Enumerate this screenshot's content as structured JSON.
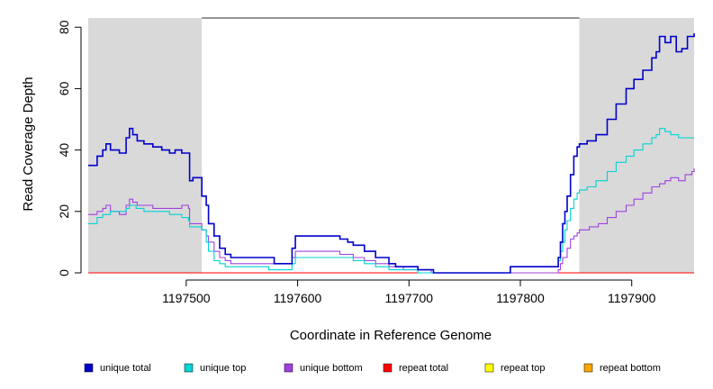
{
  "chart_data": {
    "type": "line",
    "title": "",
    "xlabel": "Coordinate in Reference Genome",
    "ylabel": "Read Coverage Depth",
    "xlim": [
      1197412,
      1197956
    ],
    "ylim": [
      0,
      83
    ],
    "xticks": [
      1197500,
      1197600,
      1197700,
      1197800,
      1197900
    ],
    "xtick_labels": [
      "1197500",
      "1197600",
      "1197700",
      "1197800",
      "1197900"
    ],
    "yticks": [
      0,
      20,
      40,
      60,
      80
    ],
    "ytick_labels": [
      "0",
      "20",
      "40",
      "60",
      "80"
    ],
    "grid": false,
    "legend_position": "bottom",
    "shaded_regions": [
      {
        "x": [
          1197412,
          1197514
        ],
        "color": "#d9d9d9"
      },
      {
        "x": [
          1197853,
          1197956
        ],
        "color": "#d9d9d9"
      }
    ],
    "top_line": {
      "y": 83,
      "x": [
        1197514,
        1197853
      ],
      "color": "#555555"
    },
    "series": [
      {
        "name": "unique total",
        "color": "#0000cc",
        "points": [
          [
            1197412,
            35
          ],
          [
            1197420,
            38
          ],
          [
            1197425,
            40
          ],
          [
            1197428,
            42
          ],
          [
            1197432,
            40
          ],
          [
            1197440,
            39
          ],
          [
            1197446,
            44
          ],
          [
            1197449,
            47
          ],
          [
            1197452,
            45
          ],
          [
            1197456,
            43
          ],
          [
            1197462,
            42
          ],
          [
            1197470,
            41
          ],
          [
            1197478,
            40
          ],
          [
            1197485,
            39
          ],
          [
            1197490,
            40
          ],
          [
            1197496,
            39
          ],
          [
            1197502,
            39
          ],
          [
            1197503,
            30
          ],
          [
            1197506,
            31
          ],
          [
            1197510,
            31
          ],
          [
            1197514,
            25
          ],
          [
            1197518,
            22
          ],
          [
            1197520,
            16
          ],
          [
            1197525,
            12
          ],
          [
            1197530,
            8
          ],
          [
            1197535,
            6
          ],
          [
            1197540,
            5
          ],
          [
            1197560,
            5
          ],
          [
            1197574,
            5
          ],
          [
            1197579,
            3
          ],
          [
            1197595,
            8
          ],
          [
            1197598,
            12
          ],
          [
            1197630,
            12
          ],
          [
            1197638,
            11
          ],
          [
            1197645,
            10
          ],
          [
            1197650,
            9
          ],
          [
            1197660,
            7
          ],
          [
            1197670,
            5
          ],
          [
            1197682,
            3
          ],
          [
            1197688,
            2
          ],
          [
            1197695,
            2
          ],
          [
            1197708,
            1
          ],
          [
            1197720,
            1
          ],
          [
            1197722,
            0
          ],
          [
            1197790,
            0
          ],
          [
            1197791,
            2
          ],
          [
            1197830,
            2
          ],
          [
            1197834,
            5
          ],
          [
            1197836,
            10
          ],
          [
            1197838,
            16
          ],
          [
            1197840,
            20
          ],
          [
            1197842,
            25
          ],
          [
            1197845,
            32
          ],
          [
            1197848,
            38
          ],
          [
            1197851,
            41
          ],
          [
            1197853,
            42
          ],
          [
            1197860,
            43
          ],
          [
            1197868,
            45
          ],
          [
            1197878,
            50
          ],
          [
            1197886,
            55
          ],
          [
            1197895,
            60
          ],
          [
            1197902,
            63
          ],
          [
            1197910,
            66
          ],
          [
            1197918,
            70
          ],
          [
            1197922,
            72
          ],
          [
            1197925,
            77
          ],
          [
            1197930,
            75
          ],
          [
            1197935,
            77
          ],
          [
            1197940,
            72
          ],
          [
            1197945,
            73
          ],
          [
            1197950,
            77
          ],
          [
            1197956,
            78
          ]
        ]
      },
      {
        "name": "unique top",
        "color": "#00d4d4",
        "points": [
          [
            1197412,
            16
          ],
          [
            1197420,
            18
          ],
          [
            1197425,
            19
          ],
          [
            1197432,
            20
          ],
          [
            1197440,
            20
          ],
          [
            1197446,
            21
          ],
          [
            1197449,
            22
          ],
          [
            1197455,
            21
          ],
          [
            1197462,
            20
          ],
          [
            1197470,
            20
          ],
          [
            1197478,
            20
          ],
          [
            1197485,
            19
          ],
          [
            1197490,
            19
          ],
          [
            1197496,
            18
          ],
          [
            1197502,
            17
          ],
          [
            1197503,
            15
          ],
          [
            1197508,
            15
          ],
          [
            1197514,
            14
          ],
          [
            1197518,
            10
          ],
          [
            1197520,
            7
          ],
          [
            1197525,
            4
          ],
          [
            1197530,
            3
          ],
          [
            1197535,
            2
          ],
          [
            1197560,
            2
          ],
          [
            1197574,
            1
          ],
          [
            1197579,
            1
          ],
          [
            1197595,
            3
          ],
          [
            1197598,
            5
          ],
          [
            1197630,
            5
          ],
          [
            1197640,
            5
          ],
          [
            1197650,
            4
          ],
          [
            1197660,
            3
          ],
          [
            1197670,
            2
          ],
          [
            1197682,
            1
          ],
          [
            1197695,
            1
          ],
          [
            1197708,
            0
          ],
          [
            1197720,
            0
          ],
          [
            1197790,
            0
          ],
          [
            1197791,
            2
          ],
          [
            1197830,
            2
          ],
          [
            1197834,
            4
          ],
          [
            1197836,
            7
          ],
          [
            1197838,
            10
          ],
          [
            1197840,
            14
          ],
          [
            1197842,
            17
          ],
          [
            1197845,
            21
          ],
          [
            1197848,
            24
          ],
          [
            1197851,
            26
          ],
          [
            1197853,
            27
          ],
          [
            1197860,
            28
          ],
          [
            1197868,
            30
          ],
          [
            1197878,
            33
          ],
          [
            1197886,
            36
          ],
          [
            1197895,
            38
          ],
          [
            1197902,
            40
          ],
          [
            1197910,
            42
          ],
          [
            1197918,
            44
          ],
          [
            1197922,
            45
          ],
          [
            1197925,
            47
          ],
          [
            1197930,
            46
          ],
          [
            1197935,
            45
          ],
          [
            1197942,
            44
          ],
          [
            1197950,
            44
          ],
          [
            1197956,
            44
          ]
        ]
      },
      {
        "name": "unique bottom",
        "color": "#a040e0",
        "points": [
          [
            1197412,
            19
          ],
          [
            1197420,
            20
          ],
          [
            1197425,
            21
          ],
          [
            1197428,
            22
          ],
          [
            1197432,
            20
          ],
          [
            1197440,
            19
          ],
          [
            1197446,
            22
          ],
          [
            1197449,
            24
          ],
          [
            1197452,
            23
          ],
          [
            1197456,
            22
          ],
          [
            1197462,
            22
          ],
          [
            1197470,
            21
          ],
          [
            1197478,
            21
          ],
          [
            1197485,
            21
          ],
          [
            1197490,
            21
          ],
          [
            1197496,
            22
          ],
          [
            1197502,
            21
          ],
          [
            1197503,
            16
          ],
          [
            1197506,
            16
          ],
          [
            1197510,
            16
          ],
          [
            1197514,
            14
          ],
          [
            1197518,
            12
          ],
          [
            1197520,
            10
          ],
          [
            1197525,
            7
          ],
          [
            1197530,
            5
          ],
          [
            1197535,
            4
          ],
          [
            1197540,
            3
          ],
          [
            1197560,
            3
          ],
          [
            1197574,
            3
          ],
          [
            1197579,
            3
          ],
          [
            1197595,
            5
          ],
          [
            1197598,
            7
          ],
          [
            1197630,
            7
          ],
          [
            1197638,
            6
          ],
          [
            1197645,
            6
          ],
          [
            1197650,
            5
          ],
          [
            1197660,
            4
          ],
          [
            1197670,
            3
          ],
          [
            1197682,
            2
          ],
          [
            1197695,
            1
          ],
          [
            1197708,
            1
          ],
          [
            1197720,
            0
          ],
          [
            1197790,
            0
          ],
          [
            1197830,
            0
          ],
          [
            1197834,
            1
          ],
          [
            1197836,
            3
          ],
          [
            1197838,
            5
          ],
          [
            1197842,
            8
          ],
          [
            1197845,
            11
          ],
          [
            1197848,
            12
          ],
          [
            1197851,
            13
          ],
          [
            1197853,
            14
          ],
          [
            1197862,
            15
          ],
          [
            1197870,
            16
          ],
          [
            1197878,
            18
          ],
          [
            1197886,
            20
          ],
          [
            1197895,
            22
          ],
          [
            1197902,
            24
          ],
          [
            1197910,
            26
          ],
          [
            1197918,
            28
          ],
          [
            1197925,
            29
          ],
          [
            1197930,
            30
          ],
          [
            1197935,
            31
          ],
          [
            1197942,
            30
          ],
          [
            1197948,
            32
          ],
          [
            1197954,
            33
          ],
          [
            1197956,
            34
          ]
        ]
      },
      {
        "name": "repeat total",
        "color": "#ff0000",
        "points": [
          [
            1197412,
            0
          ],
          [
            1197956,
            0
          ]
        ]
      },
      {
        "name": "repeat top",
        "color": "#ffff00",
        "points": [
          [
            1197412,
            0
          ],
          [
            1197956,
            0
          ]
        ]
      },
      {
        "name": "repeat bottom",
        "color": "#ffa500",
        "points": [
          [
            1197412,
            0
          ],
          [
            1197956,
            0
          ]
        ]
      }
    ]
  }
}
